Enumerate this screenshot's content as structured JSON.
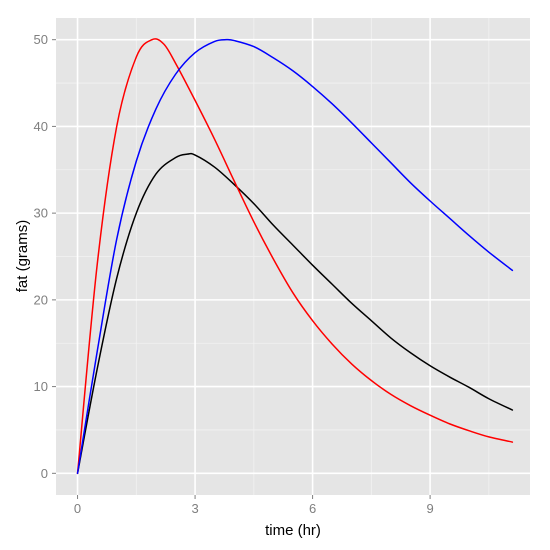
{
  "chart_data": {
    "type": "line",
    "xlabel": "time (hr)",
    "ylabel": "fat (grams)",
    "xlim": [
      -0.55,
      11.55
    ],
    "ylim": [
      -2.5,
      52.5
    ],
    "xticks": [
      0,
      3,
      6,
      9
    ],
    "xtick_labels": [
      "0",
      "3",
      "6",
      "9"
    ],
    "yticks": [
      0,
      10,
      20,
      30,
      40,
      50
    ],
    "ytick_labels": [
      "0",
      "10",
      "20",
      "30",
      "40",
      "50"
    ],
    "grid": true,
    "legend": "none",
    "colors": {
      "panel_background": "#e5e5e5",
      "grid_major": "#ffffff",
      "grid_minor": "#f2f2f2",
      "tick_text": "#7f7f7f",
      "tick_mark": "#7f7f7f"
    },
    "series": [
      {
        "color": "#000000",
        "x": [
          0,
          0.5,
          1,
          1.5,
          2,
          2.5,
          2.8,
          3,
          3.5,
          4,
          4.5,
          5,
          5.5,
          6,
          6.5,
          7,
          7.5,
          8,
          8.5,
          9,
          9.5,
          10,
          10.5,
          11.1
        ],
        "y": [
          0,
          12,
          22.5,
          30,
          34.5,
          36.4,
          36.8,
          36.7,
          35.3,
          33.3,
          31.1,
          28.6,
          26.3,
          24.0,
          21.8,
          19.6,
          17.6,
          15.6,
          13.9,
          12.4,
          11.1,
          9.9,
          8.6,
          7.3
        ]
      },
      {
        "color": "#ff0000",
        "x": [
          0,
          0.5,
          1,
          1.5,
          1.9,
          2.2,
          2.5,
          3,
          3.5,
          4,
          4.5,
          5,
          5.5,
          6,
          6.5,
          7,
          7.5,
          8,
          8.5,
          9,
          9.5,
          10,
          10.5,
          11.1
        ],
        "y": [
          0,
          24,
          40,
          48,
          50,
          49.5,
          47.3,
          43,
          38.5,
          33.7,
          29,
          24.7,
          20.8,
          17.6,
          14.9,
          12.6,
          10.7,
          9.1,
          7.8,
          6.7,
          5.7,
          4.9,
          4.2,
          3.6
        ]
      },
      {
        "color": "#0000ff",
        "x": [
          0,
          0.5,
          1,
          1.5,
          2,
          2.5,
          3,
          3.5,
          3.8,
          4,
          4.5,
          5,
          5.5,
          6,
          6.5,
          7,
          7.5,
          8,
          8.5,
          9,
          9.5,
          10,
          10.5,
          11.1
        ],
        "y": [
          0,
          14,
          27,
          36,
          42,
          46,
          48.5,
          49.8,
          50,
          49.9,
          49.2,
          47.9,
          46.4,
          44.6,
          42.6,
          40.4,
          38.1,
          35.8,
          33.5,
          31.4,
          29.4,
          27.4,
          25.5,
          23.4
        ]
      }
    ]
  }
}
